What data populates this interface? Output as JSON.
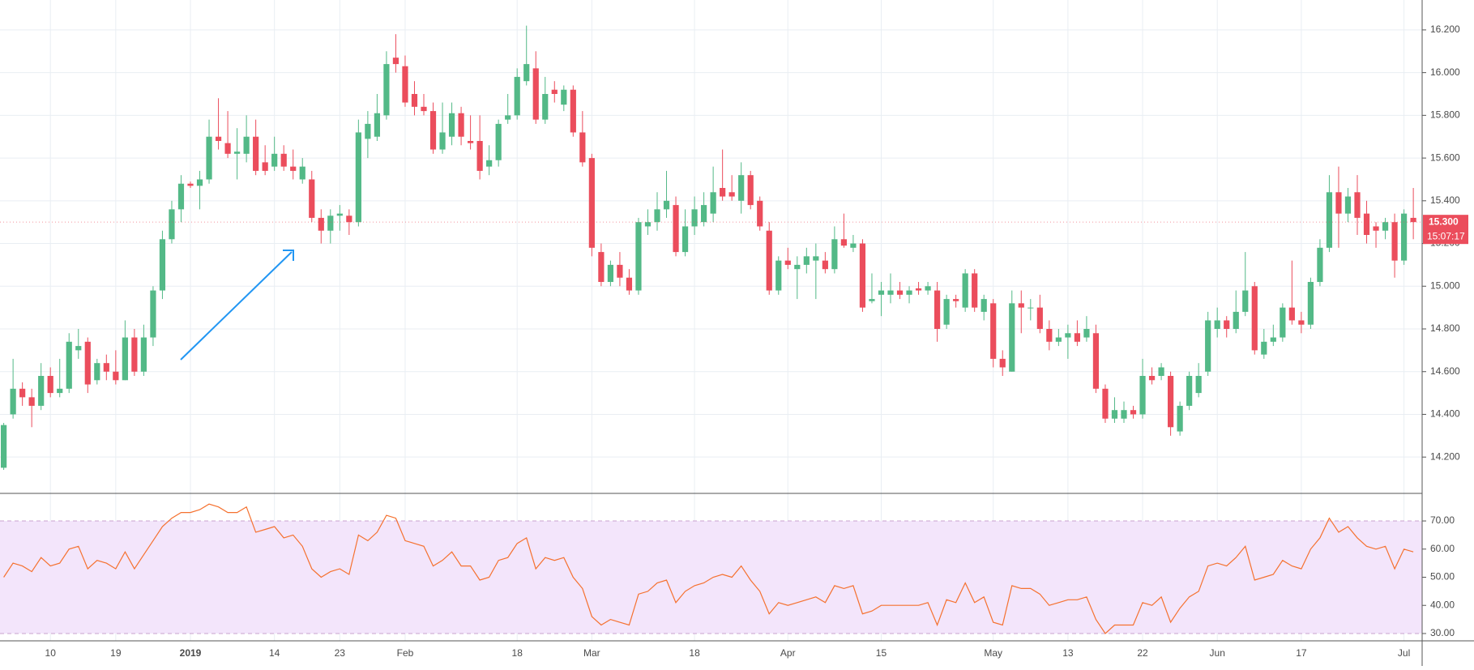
{
  "chart_data": [
    {
      "type": "candlestick",
      "categories": [
        null,
        null,
        null,
        null,
        null,
        "10",
        null,
        null,
        null,
        null,
        null,
        null,
        "19",
        null,
        null,
        null,
        null,
        null,
        null,
        null,
        "2019",
        null,
        null,
        null,
        null,
        null,
        null,
        null,
        null,
        "14",
        null,
        null,
        null,
        null,
        null,
        null,
        "23",
        null,
        null,
        null,
        null,
        null,
        null,
        "Feb",
        null,
        null,
        null,
        null,
        null,
        null,
        null,
        null,
        null,
        null,
        null,
        "18",
        null,
        null,
        null,
        null,
        null,
        null,
        null,
        "Mar",
        null,
        null,
        null,
        null,
        null,
        null,
        null,
        null,
        null,
        null,
        "18",
        null,
        null,
        null,
        null,
        null,
        null,
        null,
        null,
        null,
        "Apr",
        null,
        null,
        null,
        null,
        null,
        null,
        null,
        null,
        null,
        "15",
        null,
        null,
        null,
        null,
        null,
        null,
        null,
        null,
        null,
        null,
        null,
        "May",
        null,
        null,
        null,
        null,
        null,
        null,
        null,
        "13",
        null,
        null,
        null,
        null,
        null,
        null,
        null,
        "22",
        null,
        null,
        null,
        null,
        null,
        null,
        null,
        "Jun",
        null,
        null,
        null,
        null,
        null,
        null,
        null,
        null,
        "17",
        null,
        null,
        null,
        null,
        null,
        null,
        null,
        null,
        null,
        null,
        "Jul",
        null
      ],
      "open": [
        14.15,
        14.4,
        14.52,
        14.48,
        14.44,
        14.58,
        14.5,
        14.52,
        14.7,
        14.74,
        14.56,
        14.64,
        14.6,
        14.56,
        14.76,
        14.6,
        14.76,
        14.98,
        15.22,
        15.36,
        15.48,
        15.47,
        15.5,
        15.7,
        15.67,
        15.62,
        15.62,
        15.7,
        15.58,
        15.56,
        15.62,
        15.56,
        15.5,
        15.5,
        15.32,
        15.26,
        15.33,
        15.33,
        15.3,
        15.69,
        15.7,
        15.8,
        16.07,
        16.03,
        15.9,
        15.84,
        15.82,
        15.64,
        15.7,
        15.81,
        15.68,
        15.68,
        15.56,
        15.59,
        15.78,
        15.8,
        15.96,
        16.02,
        15.78,
        15.92,
        15.85,
        15.92,
        15.72,
        15.6,
        15.16,
        15.02,
        15.1,
        15.04,
        14.98,
        15.28,
        15.3,
        15.36,
        15.38,
        15.16,
        15.28,
        15.3,
        15.34,
        15.46,
        15.44,
        15.4,
        15.52,
        15.4,
        15.26,
        14.98,
        15.12,
        15.08,
        15.1,
        15.12,
        15.12,
        15.08,
        15.22,
        15.18,
        15.2,
        14.93,
        14.96,
        14.96,
        14.98,
        14.96,
        14.99,
        14.98,
        14.98,
        14.82,
        14.94,
        14.9,
        15.06,
        14.88,
        14.92,
        14.66,
        14.6,
        14.92,
        14.9,
        14.9,
        14.8,
        14.74,
        14.76,
        14.78,
        14.76,
        14.78,
        14.52,
        14.38,
        14.38,
        14.42,
        14.4,
        14.58,
        14.58,
        14.58,
        14.32,
        14.44,
        14.5,
        14.6,
        14.8,
        14.84,
        14.8,
        14.88,
        15.0,
        14.68,
        14.74,
        14.76,
        14.9,
        14.84,
        14.82,
        15.02,
        15.18,
        15.44,
        15.34,
        15.44,
        15.34,
        15.28,
        15.26,
        15.3,
        15.12,
        15.32
      ],
      "high": [
        14.36,
        14.66,
        14.55,
        14.52,
        14.64,
        14.62,
        14.66,
        14.78,
        14.8,
        14.76,
        14.66,
        14.68,
        14.7,
        14.84,
        14.8,
        14.82,
        15.0,
        15.26,
        15.4,
        15.52,
        15.49,
        15.54,
        15.78,
        15.88,
        15.82,
        15.74,
        15.8,
        15.78,
        15.66,
        15.7,
        15.66,
        15.64,
        15.6,
        15.54,
        15.36,
        15.36,
        15.38,
        15.36,
        15.78,
        15.82,
        15.9,
        16.1,
        16.18,
        16.08,
        15.96,
        15.9,
        15.86,
        15.86,
        15.86,
        15.84,
        15.8,
        15.8,
        15.66,
        15.78,
        15.9,
        16.02,
        16.22,
        16.1,
        15.98,
        15.96,
        15.94,
        15.94,
        15.82,
        15.62,
        15.2,
        15.12,
        15.16,
        15.08,
        15.32,
        15.36,
        15.44,
        15.54,
        15.42,
        15.36,
        15.42,
        15.44,
        15.56,
        15.64,
        15.52,
        15.58,
        15.54,
        15.42,
        15.3,
        15.14,
        15.18,
        15.14,
        15.18,
        15.2,
        15.16,
        15.28,
        15.34,
        15.24,
        15.22,
        15.06,
        15.02,
        15.06,
        15.02,
        15.0,
        15.02,
        15.02,
        15.02,
        14.96,
        14.96,
        15.08,
        15.08,
        14.96,
        14.94,
        14.7,
        14.98,
        14.98,
        14.94,
        14.96,
        14.84,
        14.8,
        14.82,
        14.84,
        14.86,
        14.82,
        14.54,
        14.48,
        14.46,
        14.44,
        14.66,
        14.62,
        14.64,
        14.6,
        14.46,
        14.6,
        14.64,
        14.88,
        14.9,
        14.86,
        14.98,
        15.16,
        15.02,
        14.8,
        14.82,
        14.92,
        15.12,
        14.88,
        15.04,
        15.22,
        15.52,
        15.56,
        15.46,
        15.52,
        15.4,
        15.3,
        15.32,
        15.34,
        15.36,
        15.46
      ],
      "low": [
        14.14,
        14.38,
        14.44,
        14.34,
        14.42,
        14.48,
        14.48,
        14.5,
        14.66,
        14.5,
        14.54,
        14.56,
        14.54,
        14.56,
        14.58,
        14.58,
        14.72,
        14.94,
        15.2,
        15.3,
        15.46,
        15.36,
        15.48,
        15.64,
        15.6,
        15.5,
        15.58,
        15.52,
        15.52,
        15.54,
        15.54,
        15.5,
        15.48,
        15.3,
        15.2,
        15.2,
        15.26,
        15.24,
        15.28,
        15.6,
        15.68,
        15.78,
        16.0,
        15.84,
        15.8,
        15.8,
        15.62,
        15.62,
        15.66,
        15.66,
        15.64,
        15.5,
        15.52,
        15.56,
        15.76,
        15.78,
        15.94,
        15.76,
        15.76,
        15.86,
        15.82,
        15.7,
        15.56,
        15.14,
        15.0,
        15.0,
        15.0,
        14.96,
        14.96,
        15.24,
        15.26,
        15.32,
        15.14,
        15.14,
        15.24,
        15.28,
        15.3,
        15.4,
        15.4,
        15.34,
        15.36,
        15.26,
        14.96,
        14.96,
        15.08,
        14.94,
        15.06,
        14.94,
        15.06,
        15.06,
        15.18,
        15.16,
        14.88,
        14.92,
        14.86,
        14.92,
        14.94,
        14.92,
        14.96,
        14.96,
        14.74,
        14.8,
        14.9,
        14.88,
        14.88,
        14.84,
        14.62,
        14.58,
        14.6,
        14.78,
        14.84,
        14.78,
        14.7,
        14.72,
        14.66,
        14.72,
        14.74,
        14.5,
        14.36,
        14.36,
        14.36,
        14.38,
        14.38,
        14.54,
        14.56,
        14.3,
        14.3,
        14.42,
        14.48,
        14.58,
        14.76,
        14.76,
        14.78,
        14.86,
        14.68,
        14.66,
        14.72,
        14.74,
        14.82,
        14.78,
        14.8,
        15.0,
        15.16,
        15.18,
        15.3,
        15.24,
        15.2,
        15.18,
        15.22,
        15.04,
        15.1,
        15.22
      ],
      "close": [
        14.35,
        14.52,
        14.48,
        14.44,
        14.58,
        14.5,
        14.52,
        14.74,
        14.72,
        14.54,
        14.64,
        14.6,
        14.56,
        14.76,
        14.6,
        14.76,
        14.98,
        15.22,
        15.36,
        15.48,
        15.47,
        15.5,
        15.7,
        15.68,
        15.62,
        15.63,
        15.7,
        15.54,
        15.54,
        15.62,
        15.56,
        15.54,
        15.56,
        15.32,
        15.26,
        15.33,
        15.34,
        15.3,
        15.72,
        15.76,
        15.81,
        16.04,
        16.04,
        15.86,
        15.84,
        15.82,
        15.64,
        15.72,
        15.81,
        15.7,
        15.67,
        15.54,
        15.59,
        15.76,
        15.8,
        15.98,
        16.04,
        15.78,
        15.9,
        15.9,
        15.92,
        15.72,
        15.58,
        15.18,
        15.02,
        15.1,
        15.04,
        14.98,
        15.3,
        15.3,
        15.36,
        15.4,
        15.16,
        15.28,
        15.36,
        15.38,
        15.44,
        15.42,
        15.42,
        15.52,
        15.38,
        15.28,
        14.98,
        15.12,
        15.1,
        15.1,
        15.14,
        15.14,
        15.08,
        15.22,
        15.19,
        15.2,
        14.9,
        14.94,
        14.98,
        14.98,
        14.96,
        14.98,
        14.98,
        15.0,
        14.8,
        14.94,
        14.93,
        15.06,
        14.9,
        14.94,
        14.66,
        14.62,
        14.92,
        14.9,
        14.9,
        14.8,
        14.74,
        14.76,
        14.78,
        14.74,
        14.8,
        14.52,
        14.38,
        14.42,
        14.42,
        14.4,
        14.58,
        14.56,
        14.62,
        14.34,
        14.44,
        14.58,
        14.58,
        14.84,
        14.84,
        14.8,
        14.88,
        14.98,
        14.7,
        14.74,
        14.76,
        14.9,
        14.84,
        14.82,
        15.02,
        15.18,
        15.44,
        15.34,
        15.42,
        15.32,
        15.24,
        15.26,
        15.3,
        15.12,
        15.34,
        15.3
      ],
      "up_color": "#53b987",
      "down_color": "#eb4d5c",
      "ylim": [
        14.03,
        16.34
      ],
      "yticks": [
        {
          "value": 14.2,
          "label": "14.200"
        },
        {
          "value": 14.4,
          "label": "14.400"
        },
        {
          "value": 14.6,
          "label": "14.600"
        },
        {
          "value": 14.8,
          "label": "14.800"
        },
        {
          "value": 15.0,
          "label": "15.000"
        },
        {
          "value": 15.2,
          "label": "15.200"
        },
        {
          "value": 15.4,
          "label": "15.400"
        },
        {
          "value": 15.6,
          "label": "15.600"
        },
        {
          "value": 15.8,
          "label": "15.800"
        },
        {
          "value": 16.0,
          "label": "16.000"
        },
        {
          "value": 16.2,
          "label": "16.200"
        }
      ],
      "grid": true,
      "last_price": {
        "value": 15.3,
        "label": "15.300"
      },
      "countdown": "15:07:17"
    },
    {
      "type": "line",
      "values": [
        50,
        55,
        54,
        52,
        57,
        54,
        55,
        60,
        61,
        53,
        56,
        55,
        53,
        59,
        53,
        58,
        63,
        68,
        71,
        73,
        73,
        74,
        76,
        75,
        73,
        73,
        75,
        66,
        67,
        68,
        64,
        65,
        61,
        53,
        50,
        52,
        53,
        51,
        65,
        63,
        66,
        72,
        71,
        63,
        62,
        61,
        54,
        56,
        59,
        54,
        54,
        49,
        50,
        56,
        57,
        62,
        64,
        53,
        57,
        56,
        57,
        50,
        46,
        36,
        33,
        35,
        34,
        33,
        44,
        45,
        48,
        49,
        41,
        45,
        47,
        48,
        50,
        51,
        50,
        54,
        49,
        45,
        37,
        41,
        40,
        41,
        42,
        43,
        41,
        47,
        46,
        47,
        37,
        38,
        40,
        40,
        40,
        40,
        40,
        41,
        33,
        42,
        41,
        48,
        41,
        43,
        34,
        33,
        47,
        46,
        46,
        44,
        40,
        41,
        42,
        42,
        43,
        35,
        30,
        33,
        33,
        33,
        41,
        40,
        43,
        34,
        39,
        43,
        45,
        54,
        55,
        54,
        57,
        61,
        49,
        50,
        51,
        56,
        54,
        53,
        60,
        64,
        71,
        66,
        68,
        64,
        61,
        60,
        61,
        53,
        60,
        59
      ],
      "color": "#f5712f",
      "ylim": [
        27.4,
        79.8
      ],
      "yticks": [
        {
          "value": 30,
          "label": "30.00"
        },
        {
          "value": 40,
          "label": "40.00"
        },
        {
          "value": 50,
          "label": "50.00"
        },
        {
          "value": 60,
          "label": "60.00"
        },
        {
          "value": 70,
          "label": "70.00"
        }
      ],
      "band": [
        30,
        70
      ],
      "band_color": "#f3e5fb"
    }
  ]
}
